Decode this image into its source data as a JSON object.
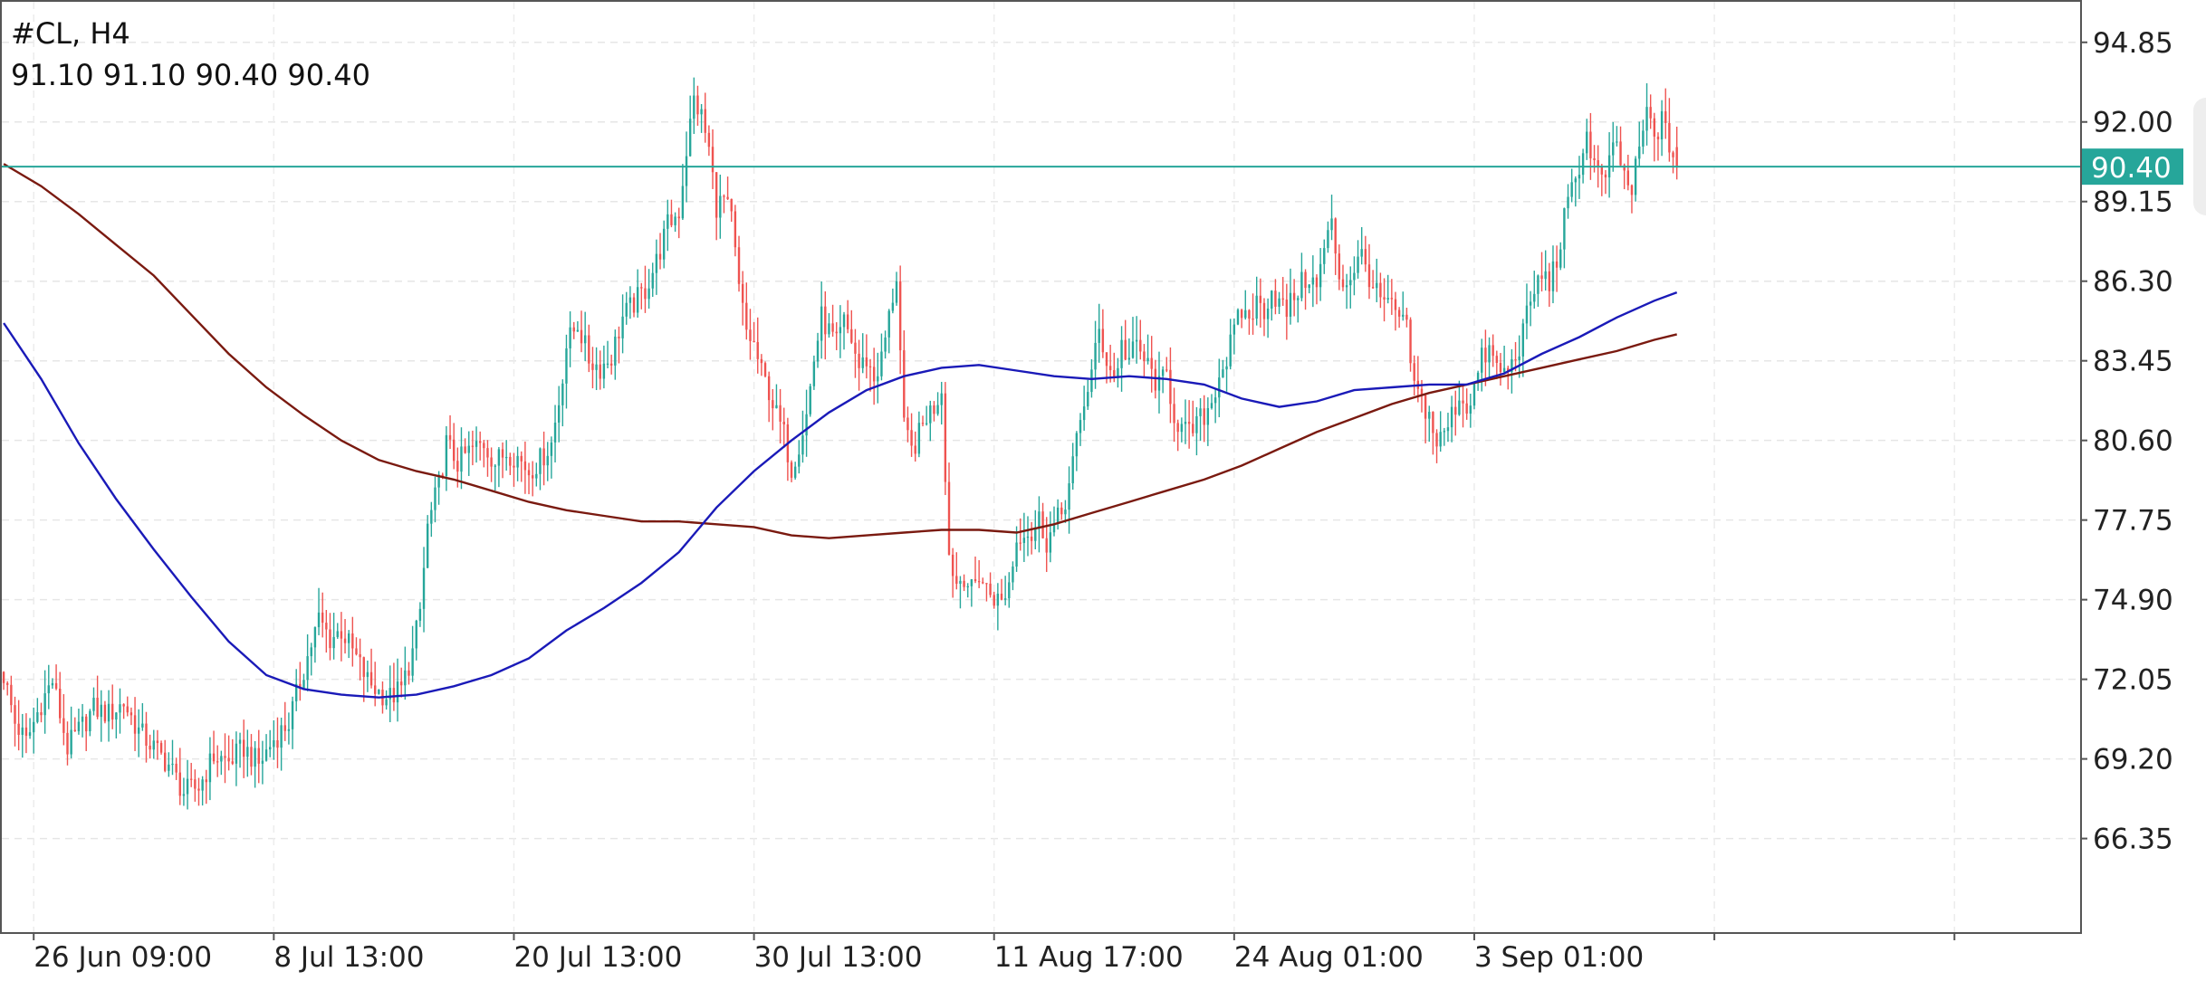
{
  "header": {
    "symbol_timeframe": "#CL, H4",
    "ohlc": "91.10 91.10 90.40 90.40"
  },
  "price_tag": "90.40",
  "chart_data": {
    "type": "candlestick",
    "symbol": "#CL",
    "timeframe": "H4",
    "ohlc_last": {
      "open": 91.1,
      "high": 91.1,
      "low": 90.4,
      "close": 90.4
    },
    "current_price": 90.4,
    "ylim": [
      63.0,
      96.3
    ],
    "y_ticks": [
      "94.85",
      "92.00",
      "89.15",
      "86.30",
      "83.45",
      "80.60",
      "77.75",
      "74.90",
      "72.05",
      "69.20",
      "66.35"
    ],
    "x_ticks": [
      "26 Jun 09:00",
      "8 Jul 13:00",
      "20 Jul 13:00",
      "30 Jul 13:00",
      "11 Aug 17:00",
      "24 Aug 01:00",
      "3 Sep 01:00"
    ],
    "x_tick_bar_index": [
      8,
      72,
      136,
      200,
      264,
      328,
      392
    ],
    "bar_count_visible": 554,
    "grid": true,
    "close_path": [
      [
        0,
        72.2
      ],
      [
        3,
        70.5
      ],
      [
        6,
        69.8
      ],
      [
        10,
        71.2
      ],
      [
        13,
        72.0
      ],
      [
        17,
        69.6
      ],
      [
        20,
        70.2
      ],
      [
        24,
        71.0
      ],
      [
        28,
        70.8
      ],
      [
        32,
        71.2
      ],
      [
        36,
        70.2
      ],
      [
        40,
        69.6
      ],
      [
        44,
        69.0
      ],
      [
        48,
        68.0
      ],
      [
        52,
        68.2
      ],
      [
        56,
        69.3
      ],
      [
        60,
        69.1
      ],
      [
        64,
        69.6
      ],
      [
        68,
        69.0
      ],
      [
        72,
        69.9
      ],
      [
        76,
        70.5
      ],
      [
        80,
        72.4
      ],
      [
        84,
        74.2
      ],
      [
        87,
        73.5
      ],
      [
        90,
        73.8
      ],
      [
        94,
        72.8
      ],
      [
        97,
        72.0
      ],
      [
        100,
        71.6
      ],
      [
        103,
        71.4
      ],
      [
        106,
        71.7
      ],
      [
        109,
        73.0
      ],
      [
        111,
        74.5
      ],
      [
        113,
        77.5
      ],
      [
        116,
        79.0
      ],
      [
        118,
        80.5
      ],
      [
        121,
        79.8
      ],
      [
        124,
        80.2
      ],
      [
        128,
        80.5
      ],
      [
        131,
        79.8
      ],
      [
        134,
        80.2
      ],
      [
        137,
        80.0
      ],
      [
        140,
        79.5
      ],
      [
        143,
        79.9
      ],
      [
        146,
        80.5
      ],
      [
        148,
        82.0
      ],
      [
        150,
        84.0
      ],
      [
        153,
        84.8
      ],
      [
        156,
        83.5
      ],
      [
        159,
        83.2
      ],
      [
        162,
        83.6
      ],
      [
        165,
        85.0
      ],
      [
        168,
        85.5
      ],
      [
        171,
        86.0
      ],
      [
        174,
        87.0
      ],
      [
        177,
        88.3
      ],
      [
        180,
        88.8
      ],
      [
        182,
        91.0
      ],
      [
        184,
        92.8
      ],
      [
        186,
        92.2
      ],
      [
        188,
        91.0
      ],
      [
        190,
        89.0
      ],
      [
        192,
        89.2
      ],
      [
        194,
        88.5
      ],
      [
        196,
        86.0
      ],
      [
        198,
        84.5
      ],
      [
        200,
        84.0
      ],
      [
        202,
        83.0
      ],
      [
        204,
        82.4
      ],
      [
        206,
        81.5
      ],
      [
        208,
        80.8
      ],
      [
        210,
        79.6
      ],
      [
        212,
        80.5
      ],
      [
        214,
        81.5
      ],
      [
        216,
        83.5
      ],
      [
        218,
        85.0
      ],
      [
        220,
        84.5
      ],
      [
        222,
        84.0
      ],
      [
        224,
        84.8
      ],
      [
        226,
        84.2
      ],
      [
        228,
        83.2
      ],
      [
        230,
        83.5
      ],
      [
        232,
        82.8
      ],
      [
        234,
        83.5
      ],
      [
        236,
        85.0
      ],
      [
        238,
        86.5
      ],
      [
        240,
        81.0
      ],
      [
        242,
        80.2
      ],
      [
        244,
        80.8
      ],
      [
        246,
        81.5
      ],
      [
        248,
        81.8
      ],
      [
        250,
        82.5
      ],
      [
        252,
        76.5
      ],
      [
        254,
        75.5
      ],
      [
        256,
        75.8
      ],
      [
        258,
        75.2
      ],
      [
        260,
        75.8
      ],
      [
        262,
        75.3
      ],
      [
        264,
        75.0
      ],
      [
        266,
        74.8
      ],
      [
        268,
        75.5
      ],
      [
        270,
        77.0
      ],
      [
        272,
        77.5
      ],
      [
        274,
        77.2
      ],
      [
        276,
        77.8
      ],
      [
        278,
        77.0
      ],
      [
        280,
        77.5
      ],
      [
        282,
        78.0
      ],
      [
        284,
        79.0
      ],
      [
        286,
        80.5
      ],
      [
        288,
        82.0
      ],
      [
        290,
        83.0
      ],
      [
        292,
        84.5
      ],
      [
        294,
        83.5
      ],
      [
        296,
        82.8
      ],
      [
        298,
        84.0
      ],
      [
        300,
        83.5
      ],
      [
        302,
        84.0
      ],
      [
        304,
        83.5
      ],
      [
        306,
        83.0
      ],
      [
        308,
        82.5
      ],
      [
        310,
        83.0
      ],
      [
        312,
        81.5
      ],
      [
        314,
        81.0
      ],
      [
        316,
        80.8
      ],
      [
        318,
        81.2
      ],
      [
        320,
        81.5
      ],
      [
        322,
        82.0
      ],
      [
        324,
        83.0
      ],
      [
        326,
        83.5
      ],
      [
        328,
        84.5
      ],
      [
        330,
        85.2
      ],
      [
        332,
        85.0
      ],
      [
        334,
        85.5
      ],
      [
        336,
        85.3
      ],
      [
        338,
        86.0
      ],
      [
        340,
        85.5
      ],
      [
        342,
        85.2
      ],
      [
        344,
        85.8
      ],
      [
        346,
        86.2
      ],
      [
        348,
        86.5
      ],
      [
        350,
        86.0
      ],
      [
        352,
        87.5
      ],
      [
        354,
        88.3
      ],
      [
        356,
        86.5
      ],
      [
        358,
        86.2
      ],
      [
        360,
        86.8
      ],
      [
        362,
        87.2
      ],
      [
        364,
        86.5
      ],
      [
        366,
        85.8
      ],
      [
        368,
        85.5
      ],
      [
        370,
        85.3
      ],
      [
        372,
        85.0
      ],
      [
        374,
        84.5
      ],
      [
        376,
        82.5
      ],
      [
        378,
        82.0
      ],
      [
        380,
        81.5
      ],
      [
        382,
        80.5
      ],
      [
        384,
        80.8
      ],
      [
        386,
        81.5
      ],
      [
        388,
        82.2
      ],
      [
        390,
        81.8
      ],
      [
        392,
        82.5
      ],
      [
        394,
        83.5
      ],
      [
        396,
        83.8
      ],
      [
        398,
        83.2
      ],
      [
        400,
        83.0
      ],
      [
        402,
        83.3
      ],
      [
        404,
        84.0
      ],
      [
        406,
        85.0
      ],
      [
        408,
        86.0
      ],
      [
        410,
        86.5
      ],
      [
        412,
        86.3
      ],
      [
        414,
        87.0
      ],
      [
        416,
        88.5
      ],
      [
        418,
        89.5
      ],
      [
        420,
        90.5
      ],
      [
        422,
        91.5
      ],
      [
        424,
        90.5
      ],
      [
        426,
        89.8
      ],
      [
        428,
        90.5
      ],
      [
        430,
        91.2
      ],
      [
        432,
        90.0
      ],
      [
        434,
        89.5
      ],
      [
        436,
        91.0
      ],
      [
        438,
        92.3
      ],
      [
        440,
        91.5
      ],
      [
        442,
        92.0
      ],
      [
        444,
        91.2
      ],
      [
        446,
        90.4
      ]
    ],
    "series": [
      {
        "color": "#26a69a",
        "role": "bullish-candles"
      },
      {
        "color": "#ef5350",
        "role": "bearish-candles"
      },
      {
        "color": "#1a1ab8",
        "role": "moving-average-fast",
        "points": [
          [
            0,
            84.8
          ],
          [
            10,
            82.8
          ],
          [
            20,
            80.5
          ],
          [
            30,
            78.5
          ],
          [
            40,
            76.7
          ],
          [
            50,
            75.0
          ],
          [
            60,
            73.4
          ],
          [
            70,
            72.2
          ],
          [
            80,
            71.7
          ],
          [
            90,
            71.5
          ],
          [
            100,
            71.4
          ],
          [
            110,
            71.5
          ],
          [
            120,
            71.8
          ],
          [
            130,
            72.2
          ],
          [
            140,
            72.8
          ],
          [
            150,
            73.8
          ],
          [
            160,
            74.6
          ],
          [
            170,
            75.5
          ],
          [
            180,
            76.6
          ],
          [
            190,
            78.2
          ],
          [
            200,
            79.5
          ],
          [
            210,
            80.6
          ],
          [
            220,
            81.6
          ],
          [
            230,
            82.4
          ],
          [
            240,
            82.9
          ],
          [
            250,
            83.2
          ],
          [
            260,
            83.3
          ],
          [
            270,
            83.1
          ],
          [
            280,
            82.9
          ],
          [
            290,
            82.8
          ],
          [
            300,
            82.9
          ],
          [
            310,
            82.8
          ],
          [
            320,
            82.6
          ],
          [
            330,
            82.1
          ],
          [
            340,
            81.8
          ],
          [
            350,
            82.0
          ],
          [
            360,
            82.4
          ],
          [
            370,
            82.5
          ],
          [
            380,
            82.6
          ],
          [
            390,
            82.6
          ],
          [
            400,
            83.0
          ],
          [
            410,
            83.7
          ],
          [
            420,
            84.3
          ],
          [
            430,
            85.0
          ],
          [
            440,
            85.6
          ],
          [
            446,
            85.9
          ]
        ]
      },
      {
        "color": "#7a1a10",
        "role": "moving-average-slow",
        "points": [
          [
            0,
            90.5
          ],
          [
            10,
            89.7
          ],
          [
            20,
            88.7
          ],
          [
            30,
            87.6
          ],
          [
            40,
            86.5
          ],
          [
            50,
            85.1
          ],
          [
            60,
            83.7
          ],
          [
            70,
            82.5
          ],
          [
            80,
            81.5
          ],
          [
            90,
            80.6
          ],
          [
            100,
            79.9
          ],
          [
            110,
            79.5
          ],
          [
            120,
            79.2
          ],
          [
            130,
            78.8
          ],
          [
            140,
            78.4
          ],
          [
            150,
            78.1
          ],
          [
            160,
            77.9
          ],
          [
            170,
            77.7
          ],
          [
            180,
            77.7
          ],
          [
            190,
            77.6
          ],
          [
            200,
            77.5
          ],
          [
            210,
            77.2
          ],
          [
            220,
            77.1
          ],
          [
            230,
            77.2
          ],
          [
            240,
            77.3
          ],
          [
            250,
            77.4
          ],
          [
            260,
            77.4
          ],
          [
            270,
            77.3
          ],
          [
            280,
            77.6
          ],
          [
            290,
            78.0
          ],
          [
            300,
            78.4
          ],
          [
            310,
            78.8
          ],
          [
            320,
            79.2
          ],
          [
            330,
            79.7
          ],
          [
            340,
            80.3
          ],
          [
            350,
            80.9
          ],
          [
            360,
            81.4
          ],
          [
            370,
            81.9
          ],
          [
            380,
            82.3
          ],
          [
            390,
            82.6
          ],
          [
            400,
            82.9
          ],
          [
            410,
            83.2
          ],
          [
            420,
            83.5
          ],
          [
            430,
            83.8
          ],
          [
            440,
            84.2
          ],
          [
            446,
            84.4
          ]
        ]
      }
    ]
  }
}
